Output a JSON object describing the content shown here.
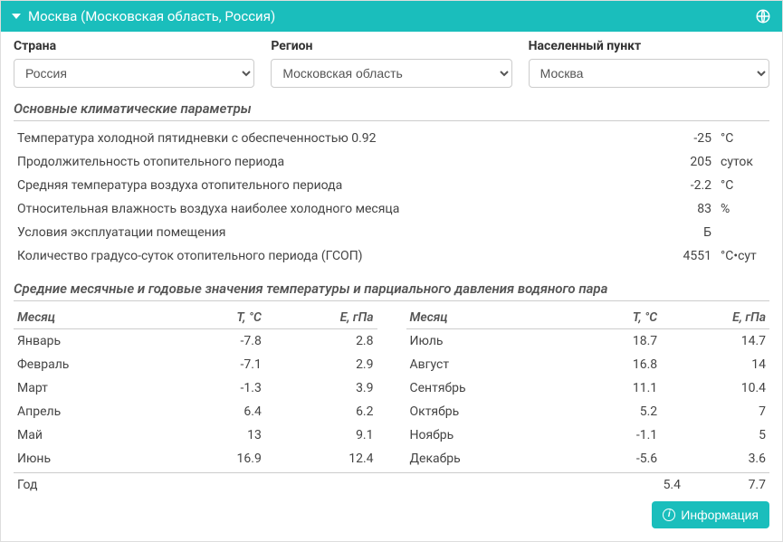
{
  "header": {
    "title": "Москва (Московская область, Россия)"
  },
  "selectors": {
    "country": {
      "label": "Страна",
      "value": "Россия"
    },
    "region": {
      "label": "Регион",
      "value": "Московская область"
    },
    "city": {
      "label": "Населенный пункт",
      "value": "Москва"
    }
  },
  "params_section": {
    "title": "Основные климатические параметры",
    "rows": [
      {
        "label": "Температура холодной пятидневки с обеспеченностью 0.92",
        "value": "-25",
        "unit": "°C"
      },
      {
        "label": "Продолжительность отопительного периода",
        "value": "205",
        "unit": "суток"
      },
      {
        "label": "Средняя температура воздуха отопительного периода",
        "value": "-2.2",
        "unit": "°C"
      },
      {
        "label": "Относительная влажность воздуха наиболее холодного месяца",
        "value": "83",
        "unit": "%"
      },
      {
        "label": "Условия эксплуатации помещения",
        "value": "Б",
        "unit": ""
      },
      {
        "label": "Количество градусо-суток отопительного периода (ГСОП)",
        "value": "4551",
        "unit": "°C•сут"
      }
    ]
  },
  "monthly_section": {
    "title": "Средние месячные и годовые значения температуры и парциального давления водяного пара",
    "headers": {
      "month": "Месяц",
      "t": "T, °C",
      "e": "E, гПа"
    },
    "left": [
      {
        "m": "Январь",
        "t": "-7.8",
        "e": "2.8"
      },
      {
        "m": "Февраль",
        "t": "-7.1",
        "e": "2.9"
      },
      {
        "m": "Март",
        "t": "-1.3",
        "e": "3.9"
      },
      {
        "m": "Апрель",
        "t": "6.4",
        "e": "6.2"
      },
      {
        "m": "Май",
        "t": "13",
        "e": "9.1"
      },
      {
        "m": "Июнь",
        "t": "16.9",
        "e": "12.4"
      }
    ],
    "right": [
      {
        "m": "Июль",
        "t": "18.7",
        "e": "14.7"
      },
      {
        "m": "Август",
        "t": "16.8",
        "e": "14"
      },
      {
        "m": "Сентябрь",
        "t": "11.1",
        "e": "10.4"
      },
      {
        "m": "Октябрь",
        "t": "5.2",
        "e": "7"
      },
      {
        "m": "Ноябрь",
        "t": "-1.1",
        "e": "5"
      },
      {
        "m": "Декабрь",
        "t": "-5.6",
        "e": "3.6"
      }
    ],
    "year": {
      "label": "Год",
      "t": "5.4",
      "e": "7.7"
    }
  },
  "footer": {
    "info_button": "Информация"
  },
  "colors": {
    "accent": "#1abebc"
  }
}
